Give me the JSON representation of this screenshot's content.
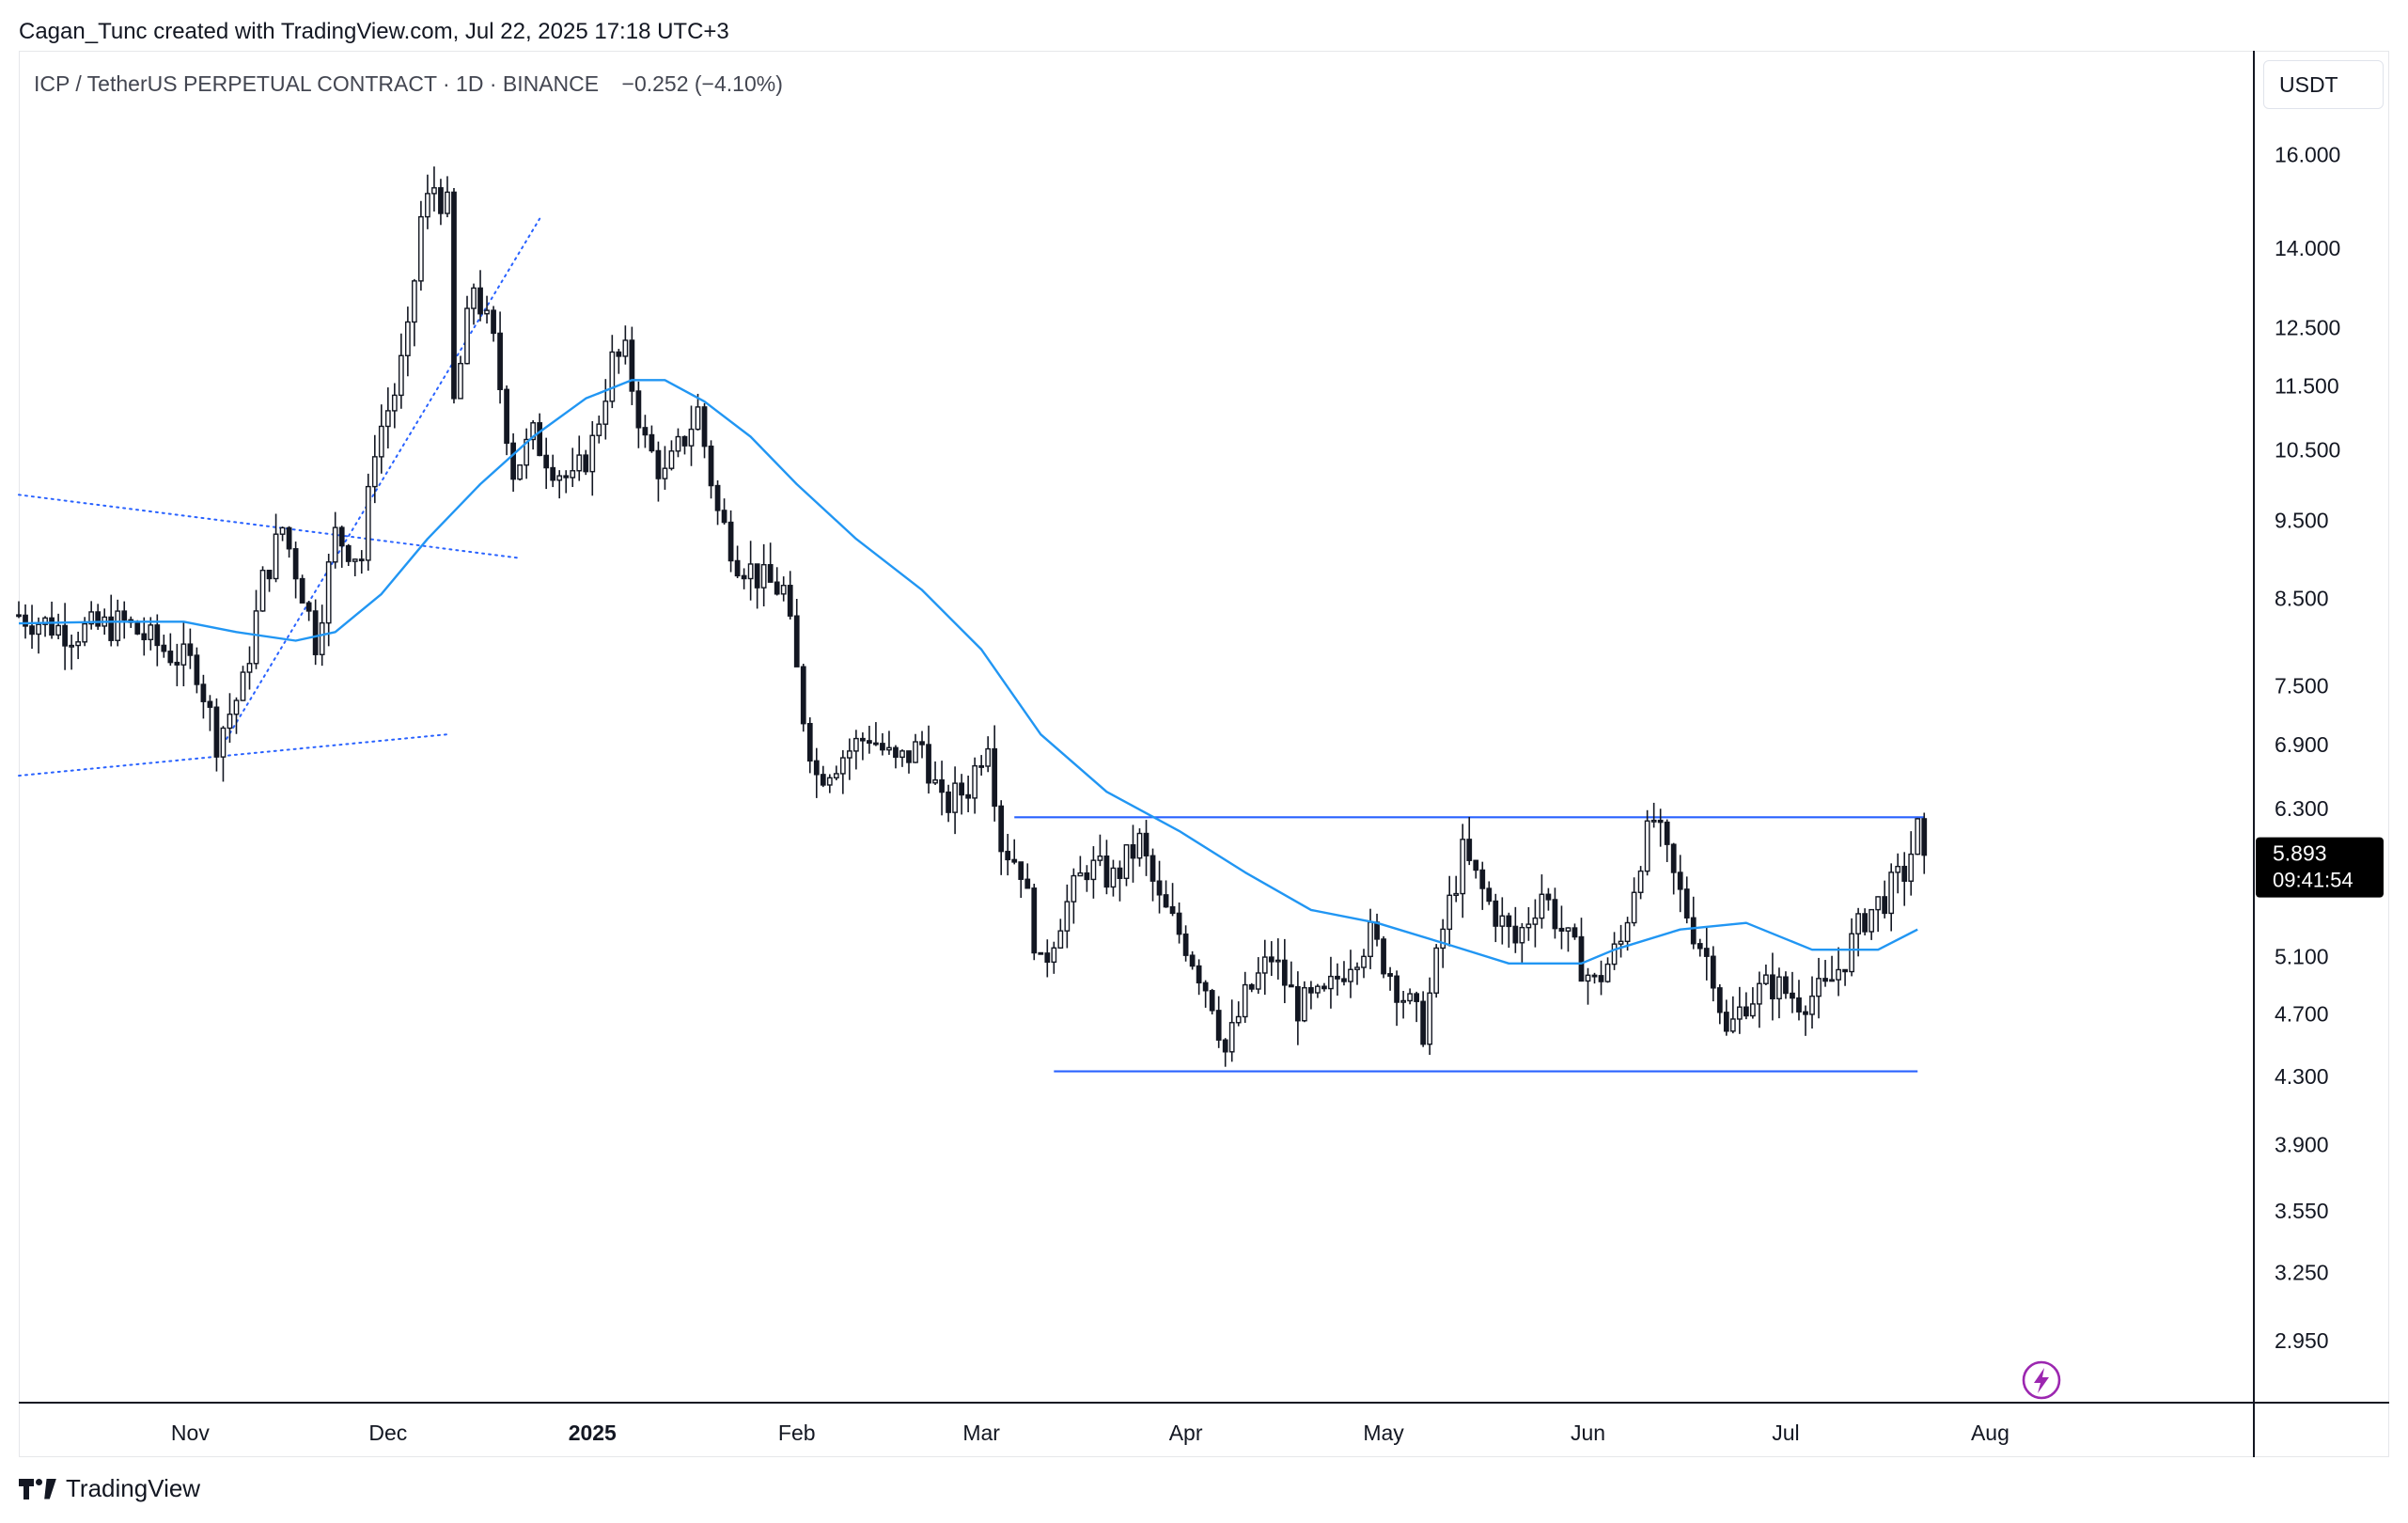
{
  "header": {
    "credit": "Cagan_Tunc created with TradingView.com, Jul 22, 2025 17:18 UTC+3"
  },
  "symbol": {
    "title": "ICP / TetherUS PERPETUAL CONTRACT · 1D · BINANCE",
    "change": "−0.252 (−4.10%)"
  },
  "price_axis": {
    "currency": "USDT",
    "last_price": "5.893",
    "countdown": "09:41:54"
  },
  "brand": {
    "name": "TradingView",
    "logo_icon": "tradingview-logo-icon"
  },
  "colors": {
    "candle": "#131722",
    "ma_line": "#2196f3",
    "drawing_line": "#2962ff",
    "price_label_bg": "#000000",
    "lightning_badge": "#9c27b0"
  },
  "chart_data": {
    "type": "candlestick",
    "scale": "log",
    "ylim": [
      2.7,
      18.5
    ],
    "x_range": [
      "2024-10-06",
      "2025-09-10"
    ],
    "y_ticks": [
      "16.000",
      "14.000",
      "12.500",
      "11.500",
      "10.500",
      "9.500",
      "8.500",
      "7.500",
      "6.900",
      "6.300",
      "5.100",
      "4.700",
      "4.300",
      "3.900",
      "3.550",
      "3.250",
      "2.950"
    ],
    "x_ticks": [
      {
        "label": "Nov",
        "date": "2024-11-01",
        "bold": false
      },
      {
        "label": "Dec",
        "date": "2024-12-01",
        "bold": false
      },
      {
        "label": "2025",
        "date": "2025-01-01",
        "bold": true
      },
      {
        "label": "Feb",
        "date": "2025-02-01",
        "bold": false
      },
      {
        "label": "Mar",
        "date": "2025-03-01",
        "bold": false
      },
      {
        "label": "Apr",
        "date": "2025-04-01",
        "bold": false
      },
      {
        "label": "May",
        "date": "2025-05-01",
        "bold": false
      },
      {
        "label": "Jun",
        "date": "2025-06-01",
        "bold": false
      },
      {
        "label": "Jul",
        "date": "2025-07-01",
        "bold": false
      },
      {
        "label": "Aug",
        "date": "2025-08-01",
        "bold": false
      }
    ],
    "close_path": [
      [
        "2024-10-06",
        8.3
      ],
      [
        "2024-10-14",
        8.1
      ],
      [
        "2024-10-22",
        8.2
      ],
      [
        "2024-10-28",
        7.9
      ],
      [
        "2024-11-02",
        7.7
      ],
      [
        "2024-11-05",
        6.95
      ],
      [
        "2024-11-09",
        7.5
      ],
      [
        "2024-11-12",
        8.7
      ],
      [
        "2024-11-15",
        9.4
      ],
      [
        "2024-11-18",
        8.6
      ],
      [
        "2024-11-20",
        8.0
      ],
      [
        "2024-11-23",
        9.3
      ],
      [
        "2024-11-27",
        9.0
      ],
      [
        "2024-11-29",
        10.6
      ],
      [
        "2024-12-02",
        11.4
      ],
      [
        "2024-12-04",
        12.3
      ],
      [
        "2024-12-06",
        14.6
      ],
      [
        "2024-12-08",
        15.3
      ],
      [
        "2024-12-10",
        14.8
      ],
      [
        "2024-12-11",
        11.2
      ],
      [
        "2024-12-14",
        13.3
      ],
      [
        "2024-12-17",
        12.2
      ],
      [
        "2024-12-20",
        10.2
      ],
      [
        "2024-12-23",
        10.7
      ],
      [
        "2024-12-26",
        10.3
      ],
      [
        "2024-12-29",
        10.0
      ],
      [
        "2025-01-01",
        10.6
      ],
      [
        "2025-01-04",
        11.9
      ],
      [
        "2025-01-06",
        12.0
      ],
      [
        "2025-01-09",
        10.6
      ],
      [
        "2025-01-12",
        10.1
      ],
      [
        "2025-01-15",
        10.7
      ],
      [
        "2025-01-17",
        11.1
      ],
      [
        "2025-01-20",
        9.6
      ],
      [
        "2025-01-23",
        9.0
      ],
      [
        "2025-01-27",
        8.7
      ],
      [
        "2025-01-30",
        8.6
      ],
      [
        "2025-02-02",
        7.2
      ],
      [
        "2025-02-04",
        6.6
      ],
      [
        "2025-02-08",
        6.8
      ],
      [
        "2025-02-12",
        7.0
      ],
      [
        "2025-02-16",
        6.7
      ],
      [
        "2025-02-20",
        6.9
      ],
      [
        "2025-02-23",
        6.3
      ],
      [
        "2025-02-27",
        6.5
      ],
      [
        "2025-03-02",
        7.0
      ],
      [
        "2025-03-04",
        6.0
      ],
      [
        "2025-03-07",
        5.8
      ],
      [
        "2025-03-10",
        5.0
      ],
      [
        "2025-03-13",
        5.4
      ],
      [
        "2025-03-17",
        5.8
      ],
      [
        "2025-03-21",
        5.7
      ],
      [
        "2025-03-25",
        6.0
      ],
      [
        "2025-03-28",
        5.5
      ],
      [
        "2025-04-01",
        5.2
      ],
      [
        "2025-04-05",
        4.8
      ],
      [
        "2025-04-07",
        4.45
      ],
      [
        "2025-04-10",
        4.8
      ],
      [
        "2025-04-14",
        5.1
      ],
      [
        "2025-04-18",
        4.75
      ],
      [
        "2025-04-22",
        4.8
      ],
      [
        "2025-04-26",
        5.1
      ],
      [
        "2025-04-29",
        5.25
      ],
      [
        "2025-05-03",
        4.9
      ],
      [
        "2025-05-07",
        4.6
      ],
      [
        "2025-05-10",
        5.3
      ],
      [
        "2025-05-13",
        5.9
      ],
      [
        "2025-05-17",
        5.5
      ],
      [
        "2025-05-21",
        5.2
      ],
      [
        "2025-05-25",
        5.6
      ],
      [
        "2025-05-29",
        5.2
      ],
      [
        "2025-06-02",
        4.9
      ],
      [
        "2025-06-06",
        5.2
      ],
      [
        "2025-06-09",
        5.9
      ],
      [
        "2025-06-11",
        6.2
      ],
      [
        "2025-06-14",
        5.7
      ],
      [
        "2025-06-17",
        5.3
      ],
      [
        "2025-06-20",
        5.0
      ],
      [
        "2025-06-22",
        4.55
      ],
      [
        "2025-06-25",
        4.8
      ],
      [
        "2025-06-29",
        4.9
      ],
      [
        "2025-07-03",
        4.8
      ],
      [
        "2025-07-07",
        4.85
      ],
      [
        "2025-07-10",
        5.1
      ],
      [
        "2025-07-13",
        5.4
      ],
      [
        "2025-07-16",
        5.55
      ],
      [
        "2025-07-19",
        5.75
      ],
      [
        "2025-07-21",
        6.1
      ],
      [
        "2025-07-22",
        5.893
      ]
    ],
    "moving_average": [
      [
        "2024-10-06",
        8.2
      ],
      [
        "2024-10-20",
        8.22
      ],
      [
        "2024-10-31",
        8.22
      ],
      [
        "2024-11-08",
        8.1
      ],
      [
        "2024-11-17",
        8.0
      ],
      [
        "2024-11-23",
        8.1
      ],
      [
        "2024-11-30",
        8.55
      ],
      [
        "2024-12-07",
        9.25
      ],
      [
        "2024-12-15",
        10.0
      ],
      [
        "2024-12-23",
        10.7
      ],
      [
        "2024-12-31",
        11.3
      ],
      [
        "2025-01-07",
        11.6
      ],
      [
        "2025-01-12",
        11.6
      ],
      [
        "2025-01-18",
        11.25
      ],
      [
        "2025-01-25",
        10.7
      ],
      [
        "2025-02-01",
        10.0
      ],
      [
        "2025-02-10",
        9.25
      ],
      [
        "2025-02-20",
        8.6
      ],
      [
        "2025-03-01",
        7.9
      ],
      [
        "2025-03-10",
        7.0
      ],
      [
        "2025-03-20",
        6.45
      ],
      [
        "2025-03-31",
        6.1
      ],
      [
        "2025-04-10",
        5.75
      ],
      [
        "2025-04-20",
        5.45
      ],
      [
        "2025-04-30",
        5.35
      ],
      [
        "2025-05-10",
        5.2
      ],
      [
        "2025-05-20",
        5.05
      ],
      [
        "2025-05-31",
        5.05
      ],
      [
        "2025-06-05",
        5.15
      ],
      [
        "2025-06-15",
        5.3
      ],
      [
        "2025-06-25",
        5.35
      ],
      [
        "2025-07-05",
        5.15
      ],
      [
        "2025-07-15",
        5.15
      ],
      [
        "2025-07-21",
        5.3
      ]
    ],
    "drawings": [
      {
        "style": "solid",
        "from": [
          "2025-03-06",
          6.22
        ],
        "to": [
          "2025-07-22",
          6.22
        ]
      },
      {
        "style": "solid",
        "from": [
          "2025-03-12",
          4.33
        ],
        "to": [
          "2025-07-21",
          4.33
        ]
      },
      {
        "style": "dotted",
        "from": [
          "2024-11-06",
          6.9
        ],
        "to": [
          "2024-12-24",
          14.6
        ]
      },
      {
        "style": "dotted",
        "from": [
          "2024-10-06",
          9.85
        ],
        "to": [
          "2024-12-21",
          9.0
        ]
      },
      {
        "style": "dotted",
        "from": [
          "2024-10-06",
          6.6
        ],
        "to": [
          "2024-12-10",
          7.0
        ]
      }
    ]
  }
}
